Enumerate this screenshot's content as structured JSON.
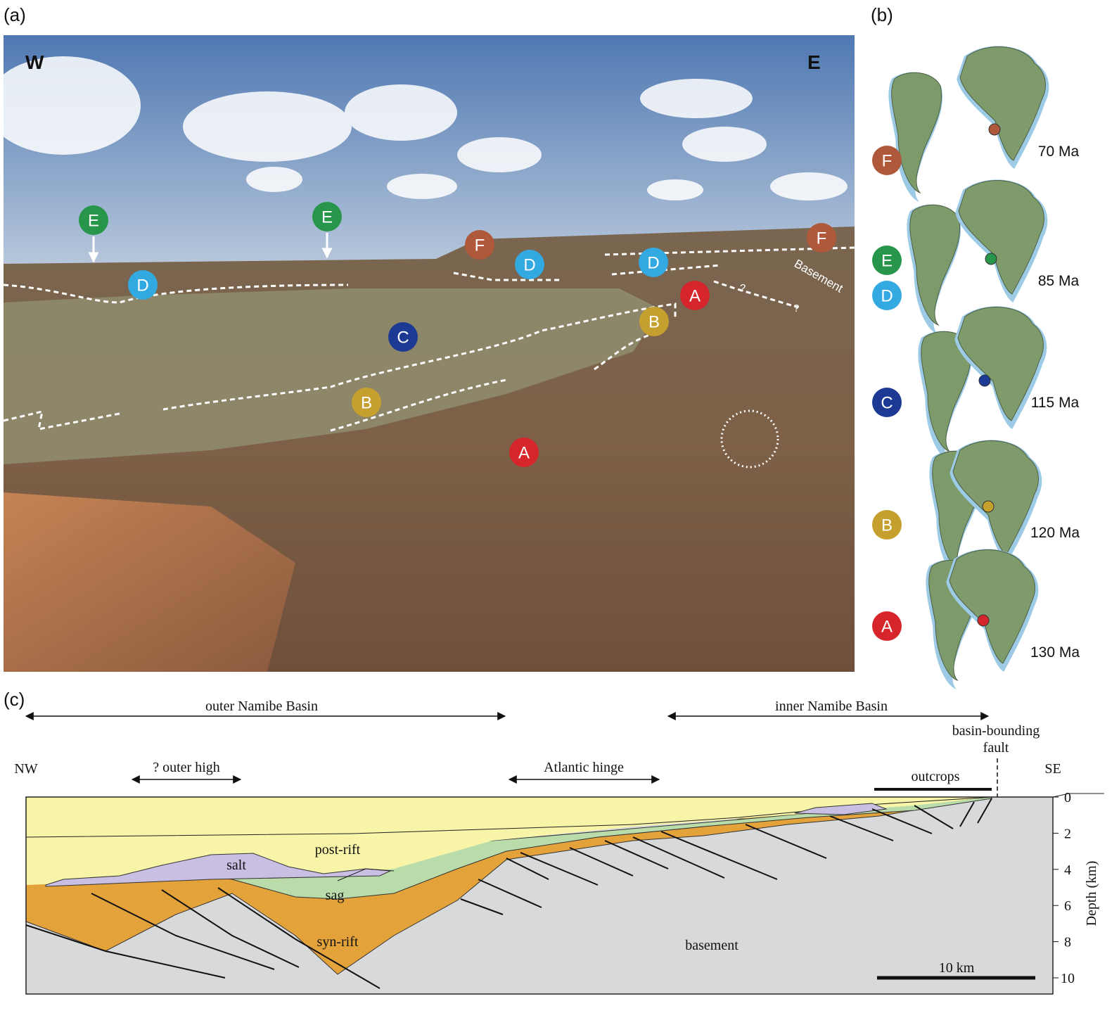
{
  "panel_a": {
    "label": "(a)",
    "west": "W",
    "east": "E",
    "markers": [
      "E",
      "E",
      "F",
      "D",
      "D",
      "F",
      "A",
      "B",
      "C",
      "B",
      "A",
      "D"
    ],
    "basement_label": "Basement",
    "question_marks": [
      "?",
      "?"
    ]
  },
  "marker_colors": {
    "A": "#d7262b",
    "B": "#c6a02e",
    "C": "#1c3a93",
    "D": "#33a9e2",
    "E": "#27964a",
    "F": "#b0583a"
  },
  "panel_b": {
    "label": "(b)",
    "rows": [
      {
        "markers": [
          "F"
        ],
        "age": "70 Ma"
      },
      {
        "markers": [
          "E",
          "D"
        ],
        "age": "85 Ma"
      },
      {
        "markers": [
          "C"
        ],
        "age": "115 Ma"
      },
      {
        "markers": [
          "B"
        ],
        "age": "120 Ma"
      },
      {
        "markers": [
          "A"
        ],
        "age": "130 Ma"
      }
    ]
  },
  "panel_c": {
    "label": "(c)",
    "outer_basin": "outer Namibe Basin",
    "inner_basin": "inner Namibe Basin",
    "outer_high": "? outer high",
    "hinge": "Atlantic  hinge",
    "fault_label": [
      "basin-bounding",
      "fault"
    ],
    "outcrops": "outcrops",
    "northwest": "NW",
    "southeast": "SE",
    "units": {
      "post_rift": "post-rift",
      "salt": "salt",
      "sag": "sag",
      "syn_rift": "syn-rift",
      "basement": "basement"
    },
    "depth_axis": {
      "title": "Depth (km)",
      "ticks": [
        0,
        2,
        4,
        6,
        8,
        10
      ]
    },
    "scale_bar": "10 km"
  }
}
